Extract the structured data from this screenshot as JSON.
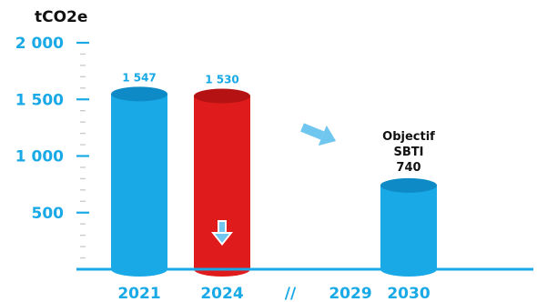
{
  "chart_data": {
    "type": "bar",
    "ylabel": "tCO2e",
    "ylim": [
      0,
      2000
    ],
    "yticks": [
      {
        "value": 500,
        "label": "500"
      },
      {
        "value": 1000,
        "label": "1 000"
      },
      {
        "value": 1500,
        "label": "1 500"
      },
      {
        "value": 2000,
        "label": "2 000"
      }
    ],
    "categories": [
      "2021",
      "2024",
      "//",
      "2029",
      "2030"
    ],
    "bars": [
      {
        "category": "2021",
        "value": 1547,
        "label": "1 547",
        "color": "#19A9E6",
        "top_color": "#0E8BC6"
      },
      {
        "category": "2024",
        "value": 1530,
        "label": "1 530",
        "color": "#E01B1B",
        "top_color": "#B51313"
      },
      {
        "category": "2030",
        "value": 740,
        "label_lines": [
          "Objectif",
          "SBTI",
          "740"
        ],
        "color": "#19A9E6",
        "top_color": "#0E8BC6"
      }
    ],
    "grid": false,
    "legend": "none"
  },
  "colors": {
    "accent": "#19A9E6",
    "highlight": "#E01B1B",
    "text": "#111111",
    "arrow_down": "#6FC6EE"
  },
  "icons": [
    "arrow-down-icon",
    "arrow-right-icon"
  ]
}
